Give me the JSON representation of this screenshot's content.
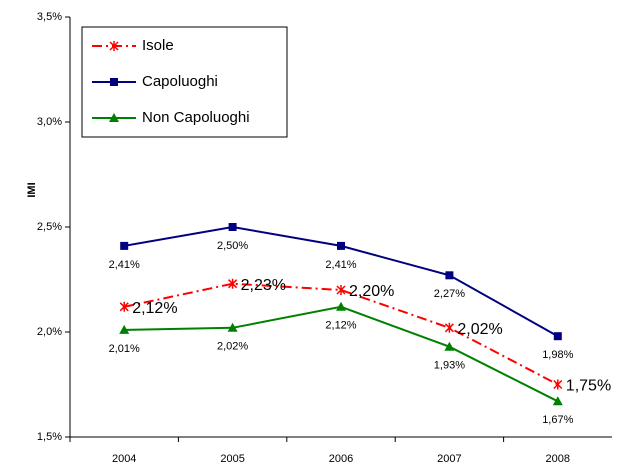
{
  "chart_data": {
    "type": "line",
    "y_label": "IMI",
    "categories": [
      "2004",
      "2005",
      "2006",
      "2007",
      "2008"
    ],
    "series": [
      {
        "name": "Isole",
        "color": "#ff0000",
        "dash": true,
        "marker": "star",
        "values": [
          2.12,
          2.23,
          2.2,
          2.02,
          1.75
        ],
        "value_labels": [
          "2,12%",
          "2,23%",
          "2,20%",
          "2,02%",
          "1,75%"
        ]
      },
      {
        "name": "Capoluoghi",
        "color": "#000080",
        "marker": "square",
        "values": [
          2.41,
          2.5,
          2.41,
          2.27,
          1.98
        ],
        "value_labels": [
          "2,41%",
          "2,50%",
          "2,41%",
          "2,27%",
          "1,98%"
        ]
      },
      {
        "name": "Non Capoluoghi",
        "color": "#008000",
        "marker": "triangle",
        "values": [
          2.01,
          2.02,
          2.12,
          1.93,
          1.67
        ],
        "value_labels": [
          "2,01%",
          "2,02%",
          "2,12%",
          "1,93%",
          "1,67%"
        ]
      }
    ],
    "ylim": [
      1.5,
      3.5
    ],
    "yticks": [
      {
        "value": 1.5,
        "label": "1,5%"
      },
      {
        "value": 2.0,
        "label": "2,0%"
      },
      {
        "value": 2.5,
        "label": "2,5%"
      },
      {
        "value": 3.0,
        "label": "3,0%"
      },
      {
        "value": 3.5,
        "label": "3,5%"
      }
    ],
    "legend": "top-left"
  }
}
